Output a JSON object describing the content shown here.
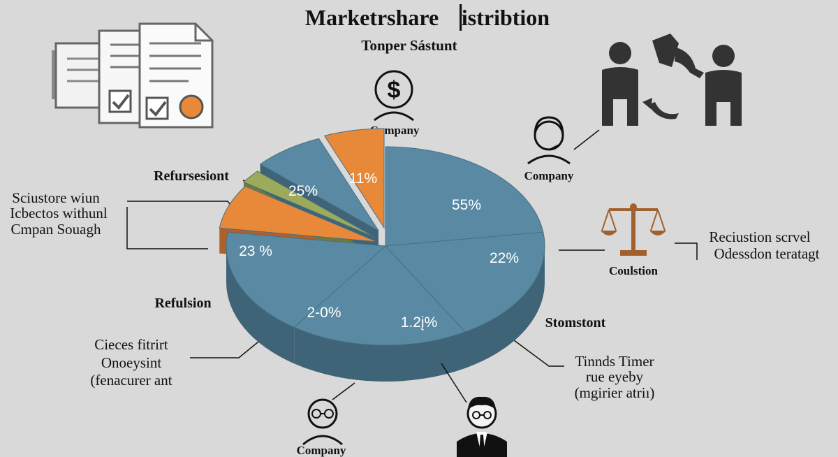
{
  "chart_data": {
    "type": "pie",
    "title": "Marketrshare ▕istribtion",
    "subtitle": "Tonper Sástunt",
    "slices": [
      {
        "label": "55%",
        "value": 55,
        "color": "#5a8aa3"
      },
      {
        "label": "22%",
        "value": 22,
        "color": "#5a8aa3"
      },
      {
        "label": "1.2į%",
        "value": 1.2,
        "color": "#5a8aa3"
      },
      {
        "label": "2-0%",
        "value": 20,
        "color": "#5a8aa3"
      },
      {
        "label": "23 %",
        "value": 23,
        "color": "#e8893a"
      },
      {
        "label": "",
        "value": 3,
        "color": "#9cab5a"
      },
      {
        "label": "25%",
        "value": 25,
        "color": "#5a8aa3"
      },
      {
        "label": "11%",
        "value": 11,
        "color": "#e8893a"
      }
    ],
    "annotations": {
      "company_top": "Company",
      "company_right": "Company",
      "company_bottom": "Company",
      "refursesiont": "Refursesiont",
      "sciustore": [
        "Sciustore wiun",
        "Icbectos withunl",
        "Cmpan Souagh"
      ],
      "refulsion": "Refulsion",
      "cieces": [
        "Cieces fitrirt",
        "Onoeysint",
        "(fenacurer ant"
      ],
      "coulstion": "Coulstion",
      "reciustion": [
        "Reciustion scrvel",
        "Odessdon teratagt"
      ],
      "stomstont": "Stomstont",
      "tinnds": [
        "Tinnds Timer",
        "rue eyeby",
        "(mgirier atriı)"
      ]
    },
    "legend": "none"
  },
  "icons": [
    "documents-icon",
    "dollar-person-icon",
    "handshake-people-icon",
    "headset-person-icon",
    "justice-scale-icon",
    "person-glasses-icon",
    "businessman-icon"
  ],
  "colors": {
    "blue": "#5a8aa3",
    "blue_dark": "#3f6478",
    "orange": "#e8893a",
    "orange_dark": "#b0602a",
    "green": "#9cab5a",
    "icon": "#333333",
    "scale": "#a0612f"
  }
}
